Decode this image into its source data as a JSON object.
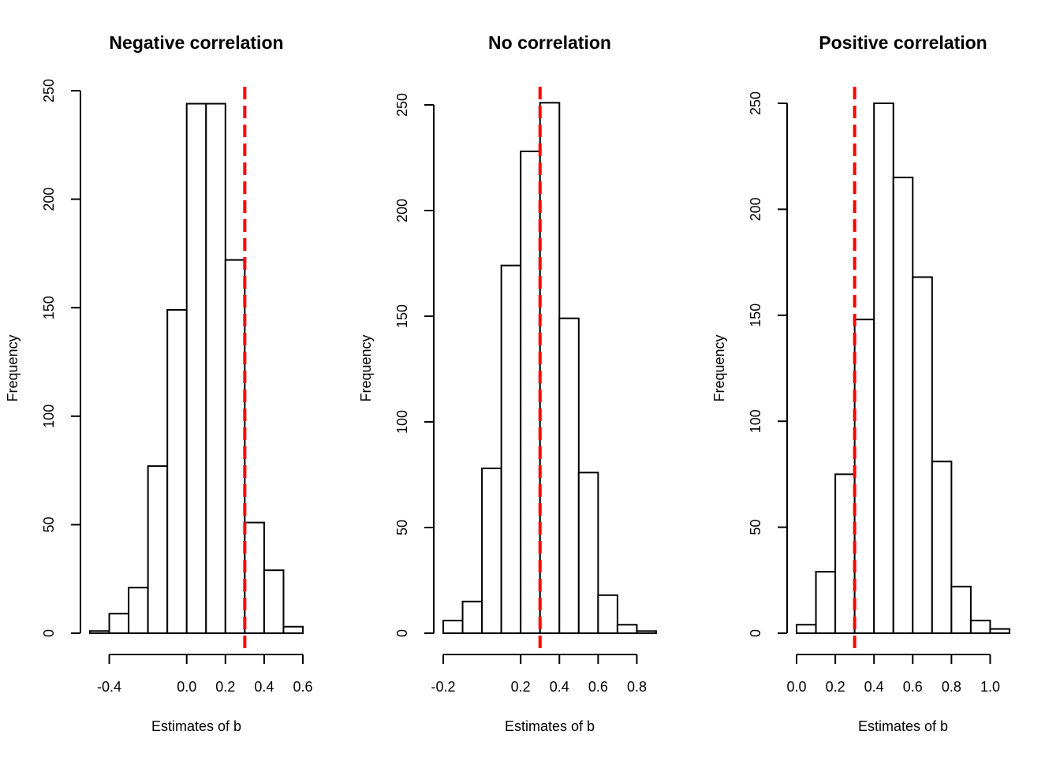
{
  "chart_data": [
    {
      "type": "bar",
      "title": "Negative correlation",
      "xlabel": "Estimates of b",
      "ylabel": "Frequency",
      "bin_edges": [
        -0.5,
        -0.4,
        -0.3,
        -0.2,
        -0.1,
        0.0,
        0.1,
        0.2,
        0.3,
        0.4,
        0.5,
        0.6
      ],
      "values": [
        1,
        9,
        21,
        77,
        149,
        244,
        244,
        172,
        51,
        29,
        3
      ],
      "xticks": [
        -0.4,
        0.0,
        0.2,
        0.4,
        0.6
      ],
      "xtick_labels": [
        "-0.4",
        "0.0",
        "0.2",
        "0.4",
        "0.6"
      ],
      "x_axis_range": [
        -0.4,
        0.6
      ],
      "yticks": [
        0,
        50,
        100,
        150,
        200,
        250
      ],
      "ytick_labels": [
        "0",
        "50",
        "100",
        "150",
        "200",
        "250"
      ],
      "ylim": [
        0,
        250
      ],
      "reference_line": {
        "x": 0.3,
        "color": "#ff0000",
        "style": "dashed"
      }
    },
    {
      "type": "bar",
      "title": "No correlation",
      "xlabel": "Estimates of b",
      "ylabel": "Frequency",
      "bin_edges": [
        -0.2,
        -0.1,
        0.0,
        0.1,
        0.2,
        0.3,
        0.4,
        0.5,
        0.6,
        0.7,
        0.8,
        0.9
      ],
      "values": [
        6,
        15,
        78,
        174,
        228,
        251,
        149,
        76,
        18,
        4,
        1
      ],
      "xticks": [
        -0.2,
        0.2,
        0.4,
        0.6,
        0.8
      ],
      "xtick_labels": [
        "-0.2",
        "0.2",
        "0.4",
        "0.6",
        "0.8"
      ],
      "x_axis_range": [
        -0.2,
        0.8
      ],
      "yticks": [
        0,
        50,
        100,
        150,
        200,
        250
      ],
      "ytick_labels": [
        "0",
        "50",
        "100",
        "150",
        "200",
        "250"
      ],
      "ylim": [
        0,
        250
      ],
      "reference_line": {
        "x": 0.3,
        "color": "#ff0000",
        "style": "dashed"
      }
    },
    {
      "type": "bar",
      "title": "Positive correlation",
      "xlabel": "Estimates of b",
      "ylabel": "Frequency",
      "bin_edges": [
        0.0,
        0.1,
        0.2,
        0.3,
        0.4,
        0.5,
        0.6,
        0.7,
        0.8,
        0.9,
        1.0,
        1.1
      ],
      "values": [
        4,
        29,
        75,
        148,
        250,
        215,
        168,
        81,
        22,
        6,
        2
      ],
      "xticks": [
        0.0,
        0.2,
        0.4,
        0.6,
        0.8,
        1.0
      ],
      "xtick_labels": [
        "0.0",
        "0.2",
        "0.4",
        "0.6",
        "0.8",
        "1.0"
      ],
      "x_axis_range": [
        0.0,
        1.0
      ],
      "yticks": [
        0,
        50,
        100,
        150,
        200,
        250
      ],
      "ytick_labels": [
        "0",
        "50",
        "100",
        "150",
        "200",
        "250"
      ],
      "ylim": [
        0,
        250
      ],
      "reference_line": {
        "x": 0.3,
        "color": "#ff0000",
        "style": "dashed"
      }
    }
  ]
}
